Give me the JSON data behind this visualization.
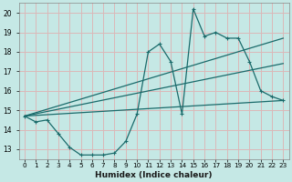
{
  "xlabel": "Humidex (Indice chaleur)",
  "bg_color": "#c5e8e5",
  "grid_color": "#dbb8b8",
  "line_color": "#1a6b6b",
  "xlim": [
    -0.5,
    23.5
  ],
  "ylim": [
    12.5,
    20.5
  ],
  "yticks": [
    13,
    14,
    15,
    16,
    17,
    18,
    19,
    20
  ],
  "xticks": [
    0,
    1,
    2,
    3,
    4,
    5,
    6,
    7,
    8,
    9,
    10,
    11,
    12,
    13,
    14,
    15,
    16,
    17,
    18,
    19,
    20,
    21,
    22,
    23
  ],
  "xtick_labels": [
    "0",
    "1",
    "2",
    "3",
    "4",
    "5",
    "6",
    "7",
    "8",
    "9",
    "10",
    "11",
    "12",
    "13",
    "14",
    "15",
    "16",
    "17",
    "18",
    "19",
    "20",
    "21",
    "22",
    "23"
  ],
  "line1_x": [
    0,
    1,
    2,
    3,
    4,
    5,
    6,
    7,
    8,
    9,
    10,
    11,
    12,
    13,
    14,
    15,
    16,
    17,
    18,
    19,
    20,
    21,
    22,
    23
  ],
  "line1_y": [
    14.7,
    14.4,
    14.5,
    13.8,
    13.1,
    12.7,
    12.7,
    12.7,
    12.8,
    13.4,
    14.8,
    18.0,
    18.4,
    17.5,
    14.8,
    20.2,
    18.8,
    19.0,
    18.7,
    18.7,
    17.5,
    16.0,
    15.7,
    15.5
  ],
  "line2_x": [
    0,
    23
  ],
  "line2_y": [
    14.7,
    15.5
  ],
  "line3_x": [
    0,
    23
  ],
  "line3_y": [
    14.7,
    18.7
  ],
  "line4_x": [
    0,
    23
  ],
  "line4_y": [
    14.7,
    17.4
  ]
}
